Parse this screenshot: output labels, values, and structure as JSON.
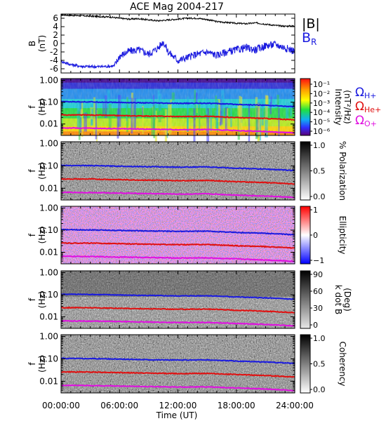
{
  "chart_data": {
    "type": "line",
    "title": "ACE Mag 2004-217",
    "xlabel": "Time (UT)",
    "x_ticks": [
      "00:00:00",
      "06:00:00",
      "12:00:00",
      "18:00:00",
      "24:00:00"
    ],
    "x_range_hours": [
      0,
      24
    ],
    "panels": [
      {
        "id": "bfield",
        "ylabel": "B",
        "yunit": "(nT)",
        "ylim": [
          -7,
          7
        ],
        "y_ticks": [
          "6",
          "4",
          "2",
          "0",
          "-2",
          "-4",
          "-6"
        ],
        "series": [
          {
            "name": "|B|",
            "color": "#000000",
            "x": [
              0,
              1,
              2,
              3,
              4,
              5,
              6,
              7,
              8,
              9,
              10,
              11,
              12,
              13,
              14,
              15,
              16,
              17,
              18,
              19,
              20,
              21,
              22,
              23,
              24
            ],
            "y": [
              6.8,
              6.7,
              6.6,
              6.5,
              6.4,
              6.3,
              6.0,
              5.8,
              5.9,
              5.6,
              5.4,
              5.6,
              5.8,
              6.0,
              6.0,
              5.7,
              5.2,
              5.0,
              4.8,
              4.7,
              4.9,
              4.6,
              4.3,
              4.1,
              4.2
            ]
          },
          {
            "name": "B",
            "subscript": "R",
            "color": "#1a1adf",
            "x": [
              0,
              1,
              2,
              3,
              4,
              5,
              5.5,
              6,
              7,
              8,
              9,
              10,
              10.5,
              11,
              12,
              13,
              14,
              15,
              16,
              17,
              18,
              19,
              20,
              21,
              22,
              23,
              24
            ],
            "y": [
              -4.2,
              -5.0,
              -5.4,
              -5.5,
              -5.5,
              -5.4,
              -5.3,
              -3.0,
              -1.8,
              -1.5,
              -2.5,
              -1.0,
              0.5,
              -2.0,
              -4.0,
              -3.3,
              -2.5,
              -2.0,
              -2.8,
              -2.0,
              -1.5,
              -1.0,
              -1.5,
              -0.5,
              -0.2,
              -1.0,
              -1.8
            ]
          }
        ]
      },
      {
        "id": "intensity",
        "ylabel": "f",
        "yunit": "(Hz)",
        "y_ticks": [
          "1.00",
          "0.10",
          "0.01"
        ],
        "colorbar_label": [
          "Intensity",
          "(nT²/Hz)"
        ],
        "colorbar_ticks": [
          "10⁻¹",
          "10⁻²",
          "10⁻³",
          "10⁻⁴",
          "10⁻⁵",
          "10⁻⁶"
        ],
        "colorbar": "rainbow"
      },
      {
        "id": "polarization",
        "ylabel": "f",
        "yunit": "(Hz)",
        "y_ticks": [
          "1.00",
          "0.10",
          "0.01"
        ],
        "colorbar_label": [
          "% Polarization"
        ],
        "colorbar_ticks": [
          "1.0",
          "0.5",
          "0.0"
        ],
        "colorbar": "gray"
      },
      {
        "id": "ellipticity",
        "ylabel": "f",
        "yunit": "(Hz)",
        "y_ticks": [
          "1.00",
          "0.10",
          "0.01"
        ],
        "colorbar_label": [
          "Ellipticity"
        ],
        "colorbar_ticks": [
          "1",
          "0",
          "−1"
        ],
        "colorbar": "bluewhitered"
      },
      {
        "id": "kdotb",
        "ylabel": "f",
        "yunit": "(Hz)",
        "y_ticks": [
          "1.00",
          "0.10",
          "0.01"
        ],
        "colorbar_label": [
          "k dot B",
          "(Deg)"
        ],
        "colorbar_ticks": [
          "90",
          "60",
          "30",
          "0"
        ],
        "colorbar": "gray"
      },
      {
        "id": "coherency",
        "ylabel": "f",
        "yunit": "(Hz)",
        "y_ticks": [
          "1.00",
          "0.10",
          "0.01"
        ],
        "colorbar_label": [
          "Coherency"
        ],
        "colorbar_ticks": [
          "1.0",
          "0.5",
          "0.0"
        ],
        "colorbar": "gray"
      }
    ],
    "gyrofrequency_lines": [
      {
        "name": "Ω",
        "subscript": "H+",
        "color": "#1a1adf",
        "x": [
          0,
          3,
          6,
          9,
          12,
          15,
          18,
          21,
          24
        ],
        "hz": [
          0.105,
          0.103,
          0.097,
          0.092,
          0.088,
          0.09,
          0.079,
          0.072,
          0.062
        ]
      },
      {
        "name": "Ω",
        "subscript": "He+",
        "color": "#e01010",
        "x": [
          0,
          3,
          6,
          9,
          12,
          15,
          18,
          21,
          24
        ],
        "hz": [
          0.026,
          0.0258,
          0.0243,
          0.023,
          0.022,
          0.0225,
          0.0198,
          0.018,
          0.0155
        ]
      },
      {
        "name": "Ω",
        "subscript": "O+",
        "color": "#e010e0",
        "x": [
          0,
          3,
          6,
          9,
          12,
          15,
          18,
          21,
          24
        ],
        "hz": [
          0.0066,
          0.0064,
          0.0061,
          0.0058,
          0.0055,
          0.0056,
          0.005,
          0.0045,
          0.0039
        ]
      }
    ],
    "freq_range_hz": [
      0.003,
      1.2
    ]
  }
}
